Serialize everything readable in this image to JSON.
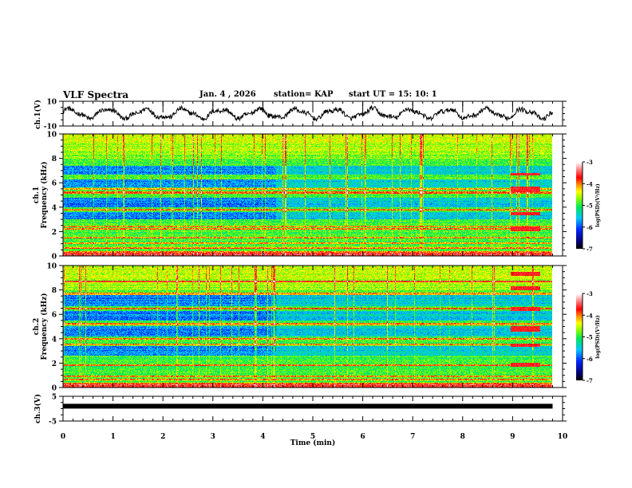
{
  "header": {
    "title": "VLF Spectra",
    "date": "Jan. 4 , 2026",
    "station": "station= KAP",
    "start_ut": "start  UT =   15: 10: 1"
  },
  "chart_data": [
    {
      "id": "ch1-waveform",
      "type": "line",
      "ylabel": "ch.1(V)",
      "ylim": [
        -10,
        10
      ],
      "yticks": [
        "10",
        "-10"
      ],
      "xlim": [
        0,
        10
      ],
      "xlabel": "Time (min)",
      "description": "Oscillating voltage waveform, roughly -5 to +5 V, ~13 slow cycles over the record",
      "x_end": 9.8
    },
    {
      "id": "ch1-spectrogram",
      "type": "heatmap",
      "ylabel": "Frequency (kHz)",
      "channel_label": "ch.1",
      "ylim": [
        0,
        10
      ],
      "yticks": [
        "0",
        "2",
        "4",
        "6",
        "8",
        "10"
      ],
      "xlim": [
        0,
        10
      ],
      "x_end": 9.8,
      "colorbar": {
        "label": "log(PSD)(V²/Hz)",
        "range": [
          -7,
          -3
        ],
        "ticks": [
          "-3",
          "-4",
          "-5",
          "-6",
          "-7"
        ]
      },
      "features": {
        "quiet_bands_khz": [
          [
            3.0,
            3.6
          ],
          [
            4.0,
            4.8
          ],
          [
            5.6,
            6.3
          ],
          [
            6.7,
            7.4
          ]
        ],
        "strong_lines_khz": [
          0.3,
          0.6,
          1.0,
          1.5,
          2.2,
          2.4,
          3.8,
          5.2,
          5.5
        ],
        "burst_interval_min": [
          8.95,
          9.55
        ],
        "burst_bands_khz": [
          [
            2.0,
            2.4
          ],
          [
            3.3,
            3.6
          ],
          [
            5.2,
            5.7
          ],
          [
            6.6,
            6.8
          ]
        ],
        "level_shift_min": 4.25
      }
    },
    {
      "id": "ch2-spectrogram",
      "type": "heatmap",
      "ylabel": "Frequency (kHz)",
      "channel_label": "ch.2",
      "ylim": [
        0,
        10
      ],
      "yticks": [
        "0",
        "2",
        "4",
        "6",
        "8",
        "10"
      ],
      "xlim": [
        0,
        10
      ],
      "x_end": 9.8,
      "colorbar": {
        "label": "log(PSD)(V²/Hz)",
        "range": [
          -7,
          -3
        ],
        "ticks": [
          "-3",
          "-4",
          "-5",
          "-6",
          "-7"
        ]
      },
      "features": {
        "quiet_bands_khz": [
          [
            2.6,
            3.4
          ],
          [
            4.2,
            5.0
          ],
          [
            5.5,
            6.3
          ],
          [
            6.7,
            7.6
          ]
        ],
        "strong_lines_khz": [
          0.3,
          0.6,
          0.9,
          1.8,
          3.5,
          4.0,
          5.2,
          6.5,
          7.7,
          8.7
        ],
        "burst_interval_min": [
          8.95,
          9.55
        ],
        "burst_bands_khz": [
          [
            1.7,
            2.0
          ],
          [
            3.3,
            3.6
          ],
          [
            4.6,
            5.0
          ],
          [
            6.3,
            6.6
          ],
          [
            8.0,
            8.3
          ],
          [
            9.2,
            9.5
          ]
        ],
        "level_shift_min": 4.25
      }
    },
    {
      "id": "ch3-waveform",
      "type": "line",
      "ylabel": "ch.3(V)",
      "ylim": [
        -5,
        5
      ],
      "yticks": [
        "5",
        "-5"
      ],
      "xlim": [
        0,
        10
      ],
      "xticks": [
        "0",
        "1",
        "2",
        "3",
        "4",
        "5",
        "6",
        "7",
        "8",
        "9",
        "10"
      ],
      "xlabel": "Time (min)",
      "description": "Nearly constant thick trace near +1 V",
      "level": 1.0,
      "x_end": 9.8
    }
  ]
}
